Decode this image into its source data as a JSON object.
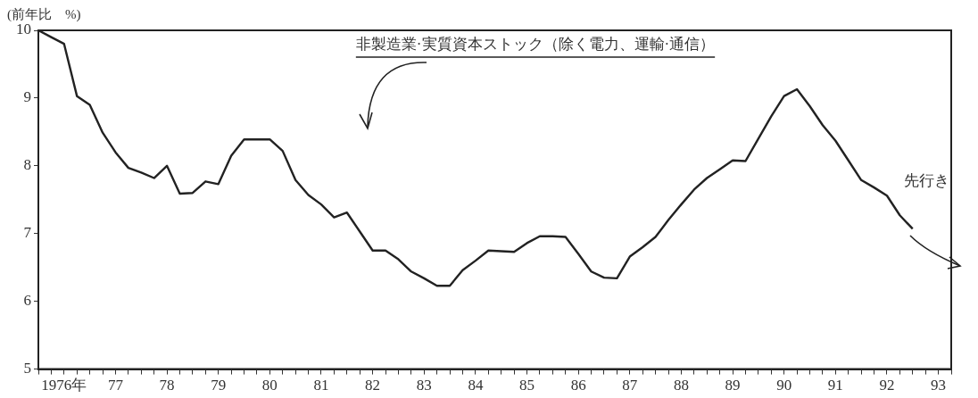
{
  "chart_data": {
    "type": "line",
    "ylabel": "(前年比　%)",
    "annotations": [
      "先行き"
    ],
    "categories": [
      null,
      null,
      "1976年",
      null,
      null,
      null,
      "77",
      null,
      null,
      null,
      "78",
      null,
      null,
      null,
      "79",
      null,
      null,
      null,
      "80",
      null,
      null,
      null,
      "81",
      null,
      null,
      null,
      "82",
      null,
      null,
      null,
      "83",
      null,
      null,
      null,
      "84",
      null,
      null,
      null,
      "85",
      null,
      null,
      null,
      "86",
      null,
      null,
      null,
      "87",
      null,
      null,
      null,
      "88",
      null,
      null,
      null,
      "89",
      null,
      null,
      null,
      "90",
      null,
      null,
      null,
      "91",
      null,
      null,
      null,
      "92",
      null,
      null,
      null,
      "93",
      null
    ],
    "series": [
      {
        "name": "非製造業·実質資本ストック（除く電力、運輸·通信）",
        "color": "#222222",
        "values": [
          10.0,
          9.9,
          9.8,
          9.03,
          8.9,
          8.49,
          8.2,
          7.97,
          7.9,
          7.82,
          8.0,
          7.59,
          7.6,
          7.77,
          7.73,
          8.15,
          8.39,
          8.39,
          8.39,
          8.22,
          7.79,
          7.57,
          7.43,
          7.24,
          7.31,
          7.03,
          6.75,
          6.75,
          6.62,
          6.44,
          6.34,
          6.23,
          6.23,
          6.46,
          6.6,
          6.75,
          6.74,
          6.73,
          6.86,
          6.96,
          6.96,
          6.95,
          6.7,
          6.44,
          6.35,
          6.34,
          6.66,
          6.8,
          6.95,
          7.2,
          7.43,
          7.65,
          7.82,
          7.95,
          8.08,
          8.07,
          8.4,
          8.73,
          9.03,
          9.13,
          8.88,
          8.6,
          8.37,
          8.08,
          7.79,
          7.68,
          7.56,
          7.27,
          7.07,
          null,
          null,
          null
        ]
      }
    ],
    "ylim": [
      5,
      10
    ],
    "yticks": [
      5,
      6,
      7,
      8,
      9,
      10
    ],
    "grid": false,
    "legend": false,
    "marker": "none",
    "line_style": "solid"
  }
}
